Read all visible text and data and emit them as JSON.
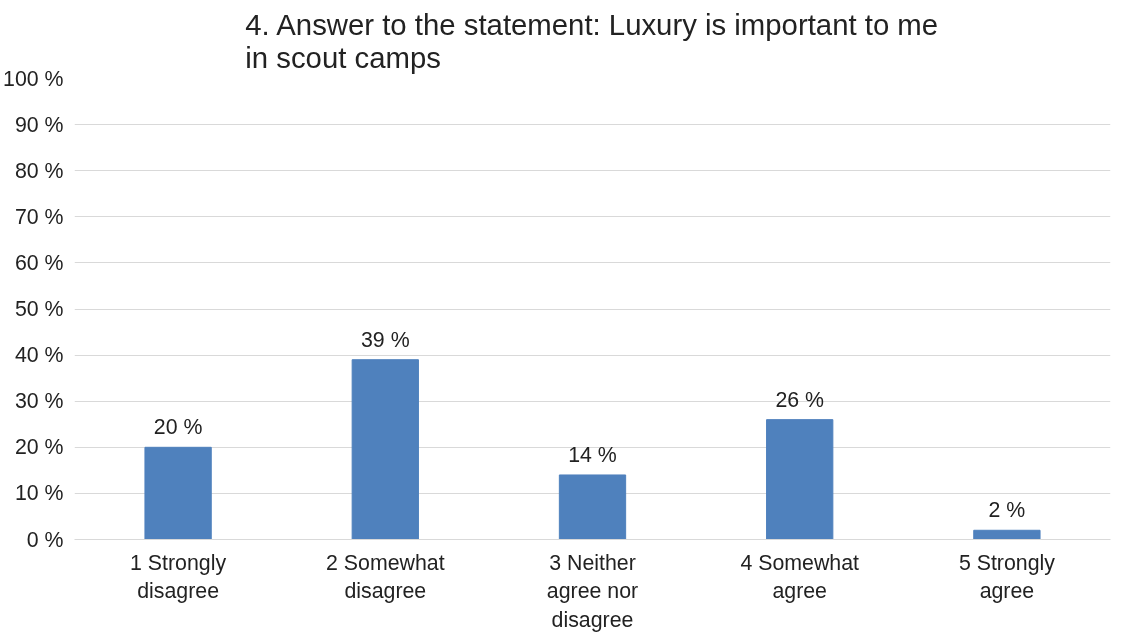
{
  "chart_data": {
    "type": "bar",
    "title": "4. Answer to the statement: Luxury is important to me in scout camps",
    "categories": [
      "1 Strongly disagree",
      "2 Somewhat disagree",
      "3 Neither agree nor disagree",
      "4 Somewhat agree",
      "5 Strongly agree"
    ],
    "values": [
      20,
      39,
      14,
      26,
      2
    ],
    "value_labels": [
      "20 %",
      "39 %",
      "14 %",
      "26 %",
      "2 %"
    ],
    "color": "#4f81bd",
    "ylim": [
      0,
      100
    ],
    "yticks": [
      {
        "value": 0,
        "label": "0 %"
      },
      {
        "value": 10,
        "label": "10 %"
      },
      {
        "value": 20,
        "label": "20 %"
      },
      {
        "value": 30,
        "label": "30 %"
      },
      {
        "value": 40,
        "label": "40 %"
      },
      {
        "value": 50,
        "label": "50 %"
      },
      {
        "value": 60,
        "label": "60 %"
      },
      {
        "value": 70,
        "label": "70 %"
      },
      {
        "value": 80,
        "label": "80 %"
      },
      {
        "value": 90,
        "label": "90 %"
      },
      {
        "value": 100,
        "label": "100 %"
      }
    ],
    "grid": "y"
  }
}
